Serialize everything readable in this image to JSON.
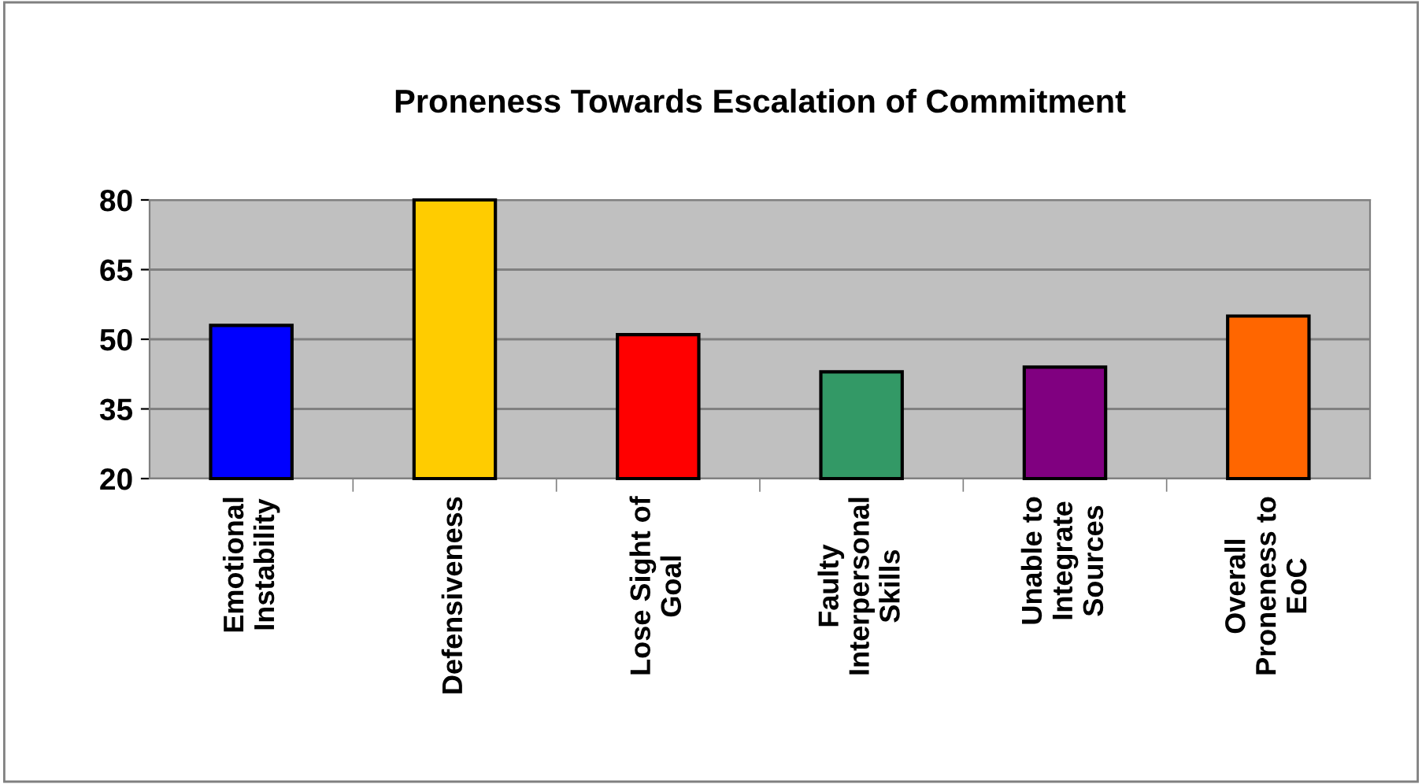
{
  "chart_data": {
    "type": "bar",
    "title": "Proneness Towards Escalation of Commitment",
    "categories": [
      "Emotional\nInstability",
      "Defensiveness",
      "Lose Sight of\nGoal",
      "Faulty\nInterpersonal\nSkills",
      "Unable to\nIntegrate\nSources",
      "Overall\nProneness to\nEoC"
    ],
    "values": [
      53,
      80,
      51,
      43,
      44,
      55
    ],
    "colors": [
      "#0000ff",
      "#ffcc00",
      "#ff0000",
      "#339966",
      "#800080",
      "#ff6600"
    ],
    "ylim": [
      20,
      80
    ],
    "yticks": [
      20,
      35,
      50,
      65,
      80
    ],
    "grid": "y",
    "legend": false
  }
}
